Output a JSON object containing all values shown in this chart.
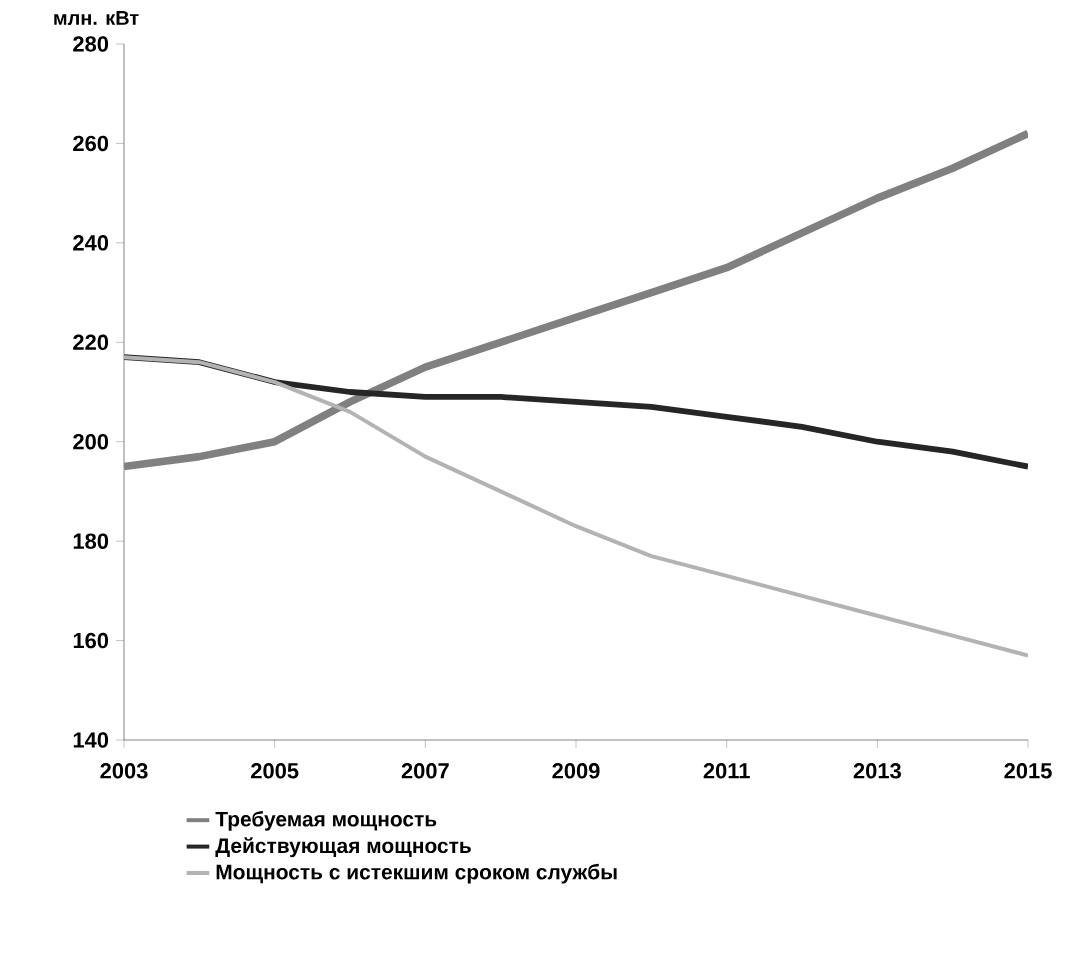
{
  "chart_data": {
    "type": "line",
    "ylabel": "млн. кВт",
    "x": [
      2003,
      2004,
      2005,
      2006,
      2007,
      2008,
      2009,
      2010,
      2011,
      2012,
      2013,
      2014,
      2015
    ],
    "xlim": [
      2003,
      2015
    ],
    "xticks": [
      2003,
      2005,
      2007,
      2009,
      2011,
      2013,
      2015
    ],
    "ylim": [
      140,
      280
    ],
    "yticks": [
      140,
      160,
      180,
      200,
      220,
      240,
      260,
      280
    ],
    "legend": "bottom",
    "marker": "none",
    "line_style": "solid",
    "series": [
      {
        "name": "Требуемая мощность",
        "color": "#808080",
        "values": [
          195,
          197,
          200,
          208,
          215,
          220,
          225,
          230,
          235,
          242,
          249,
          255,
          262
        ]
      },
      {
        "name": "Действующая мощность",
        "color": "#262626",
        "values": [
          217,
          216,
          212,
          210,
          209,
          209,
          208,
          207,
          205,
          203,
          200,
          198,
          195
        ]
      },
      {
        "name": "Мощность с истекшим сроком службы",
        "color": "#b3b3b3",
        "values": [
          217,
          216,
          212,
          206,
          197,
          190,
          183,
          177,
          173,
          169,
          165,
          161,
          157
        ]
      }
    ]
  }
}
